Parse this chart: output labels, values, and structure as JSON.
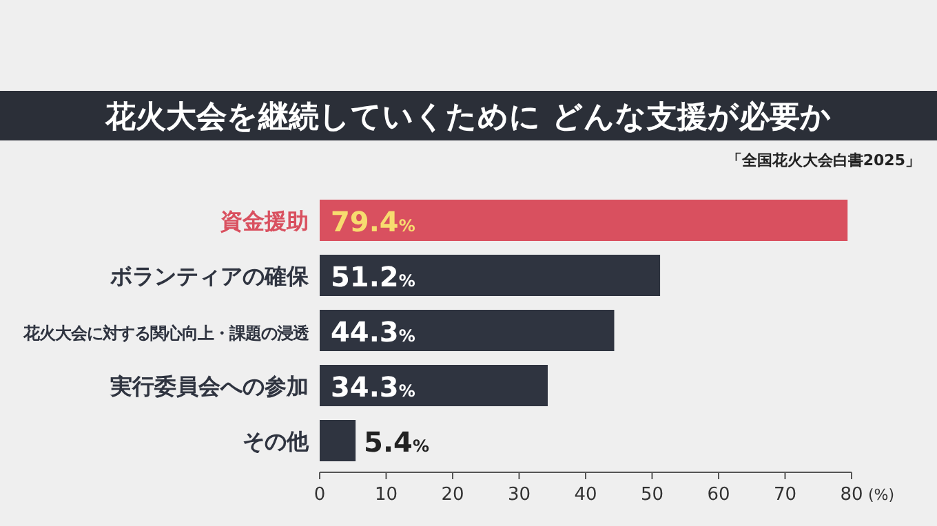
{
  "chart_data": {
    "type": "bar",
    "orientation": "horizontal",
    "title": "花火大会を継続していくために どんな支援が必要か",
    "annotations": [
      "「全国花火大会白書2025」"
    ],
    "categories": [
      "資金援助",
      "ボランティアの確保",
      "花火大会に対する関心向上・課題の浸透",
      "実行委員会への参加",
      "その他"
    ],
    "values": [
      79.4,
      51.2,
      44.3,
      34.3,
      5.4
    ],
    "colors": [
      "#d9505f",
      "#2f3440",
      "#2f3440",
      "#2f3440",
      "#2f3440"
    ],
    "value_labels": [
      "79.4%",
      "51.2%",
      "44.3%",
      "34.3%",
      "5.4%"
    ],
    "xlim": [
      0,
      80
    ],
    "xticks": [
      0,
      10,
      20,
      30,
      40,
      50,
      60,
      70,
      80
    ],
    "xlabel": "(%)",
    "grid": false
  }
}
